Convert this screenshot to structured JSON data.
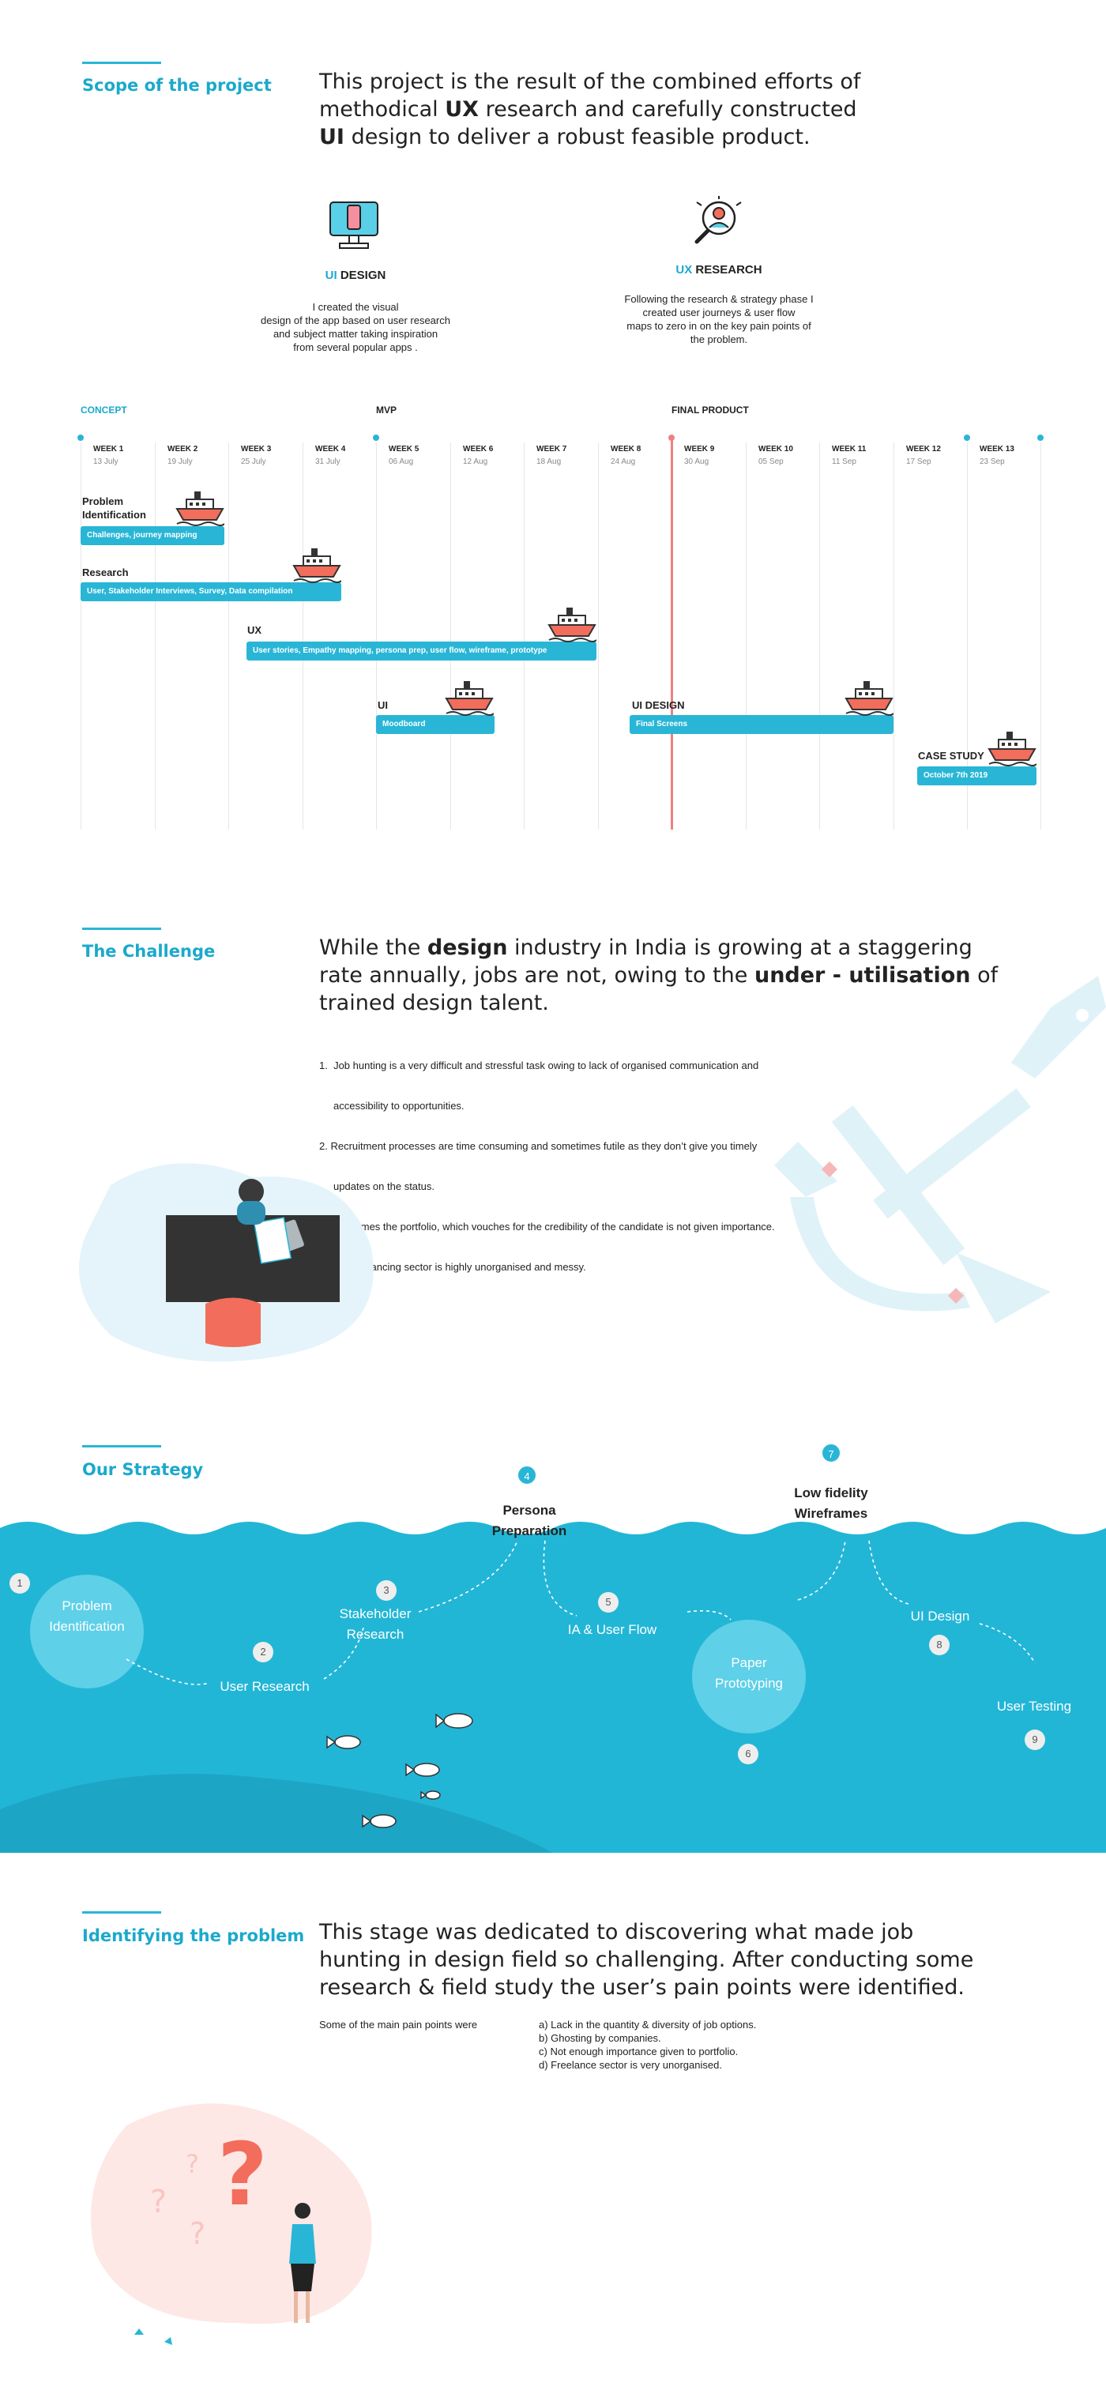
{
  "scope": {
    "title": "Scope of the project",
    "lead_1": "This project is the result of the combined efforts of",
    "lead_2a": "methodical ",
    "lead_2b": "UX",
    "lead_2c": " research and carefully constructed",
    "lead_3a": "UI",
    "lead_3b": " design to deliver a robust feasible product.",
    "ui_design": {
      "prefix": "UI",
      "title": "DESIGN",
      "lines": [
        "I created the visual",
        "design of the app based on user research",
        "and subject matter taking inspiration",
        "from several popular apps ."
      ]
    },
    "ux_research": {
      "prefix": "UX",
      "title": "RESEARCH",
      "lines": [
        "Following the research & strategy phase I",
        "created  user journeys & user flow",
        "maps to zero in on the key pain points of",
        "the problem."
      ]
    }
  },
  "timeline": {
    "milestones": [
      "CONCEPT",
      "MVP",
      "FINAL PRODUCT"
    ],
    "weeks": [
      {
        "label": "WEEK 1",
        "date": "13 July"
      },
      {
        "label": "WEEK 2",
        "date": "19 July"
      },
      {
        "label": "WEEK 3",
        "date": "25 July"
      },
      {
        "label": "WEEK 4",
        "date": "31 July"
      },
      {
        "label": "WEEK 5",
        "date": "06 Aug"
      },
      {
        "label": "WEEK 6",
        "date": "12 Aug"
      },
      {
        "label": "WEEK 7",
        "date": "18 Aug"
      },
      {
        "label": "WEEK 8",
        "date": "24 Aug"
      },
      {
        "label": "WEEK 9",
        "date": "30 Aug"
      },
      {
        "label": "WEEK 10",
        "date": "05 Sep"
      },
      {
        "label": "WEEK 11",
        "date": "11 Sep"
      },
      {
        "label": "WEEK 12",
        "date": "17 Sep"
      },
      {
        "label": "WEEK 13",
        "date": "23 Sep"
      }
    ],
    "tasks": {
      "problem_id_title_1": "Problem",
      "problem_id_title_2": "Identification",
      "problem_id_bar": "Challenges, journey mapping",
      "research_title": "Research",
      "research_bar": "User, Stakeholder Interviews, Survey, Data compilation",
      "ux_title": "UX",
      "ux_bar": "User stories, Empathy mapping, persona prep, user flow, wireframe, prototype",
      "ui_title": "UI",
      "ui_bar": "Moodboard",
      "ui_design_title": "UI DESIGN",
      "ui_design_bar": "Final Screens",
      "case_study_title": "CASE STUDY",
      "case_study_bar": "October 7th 2019"
    }
  },
  "challenge": {
    "title": "The Challenge",
    "lead_1a": "While the ",
    "lead_1b": "design",
    "lead_1c": " industry in India is growing at a staggering",
    "lead_2a": "rate annually, jobs are not, owing to the ",
    "lead_2b": "under - utilisation",
    "lead_2c": " of",
    "lead_3": "trained design talent.",
    "points": [
      "1.  Job hunting is a very difficult and stressful task owing to lack of organised communication and",
      "     accessibility to opportunities.",
      "2. Recruitment processes are time consuming and sometimes futile as they don’t give you timely",
      "     updates on the status.",
      "3. Oftentimes the portfolio, which vouches for the credibility of the candidate is not given importance.",
      "4. The freelancing sector is highly unorganised and messy."
    ]
  },
  "strategy": {
    "title": "Our Strategy",
    "steps": [
      {
        "n": "1",
        "label_1": "Problem",
        "label_2": "Identification"
      },
      {
        "n": "2",
        "label_1": "User Research"
      },
      {
        "n": "3",
        "label_1": "Stakeholder",
        "label_2": "Research"
      },
      {
        "n": "4",
        "label_1": "Persona",
        "label_2": "Preparation"
      },
      {
        "n": "5",
        "label_1": "IA & User Flow"
      },
      {
        "n": "6",
        "label_1": "Paper",
        "label_2": "Prototyping"
      },
      {
        "n": "7",
        "label_1": "Low fidelity",
        "label_2": "Wireframes"
      },
      {
        "n": "8",
        "label_1": "UI Design"
      },
      {
        "n": "9",
        "label_1": "User Testing"
      }
    ]
  },
  "identify": {
    "title": "Identifying the problem",
    "lead_1": "This stage was dedicated to discovering what made job",
    "lead_2": "hunting in design field so challenging. After conducting  some",
    "lead_3": "research & field study the user’s pain points were identified.",
    "intro": "Some of the main pain points were",
    "points": [
      "a) Lack in the quantity & diversity of job options.",
      "b) Ghosting by companies.",
      "c) Not enough importance given to portfolio.",
      "d) Freelance sector is very unorganised."
    ]
  },
  "colors": {
    "accent": "#29b6d6",
    "ocean": "#22b6d6",
    "ship": "#f26d5b",
    "today": "#f08080"
  }
}
